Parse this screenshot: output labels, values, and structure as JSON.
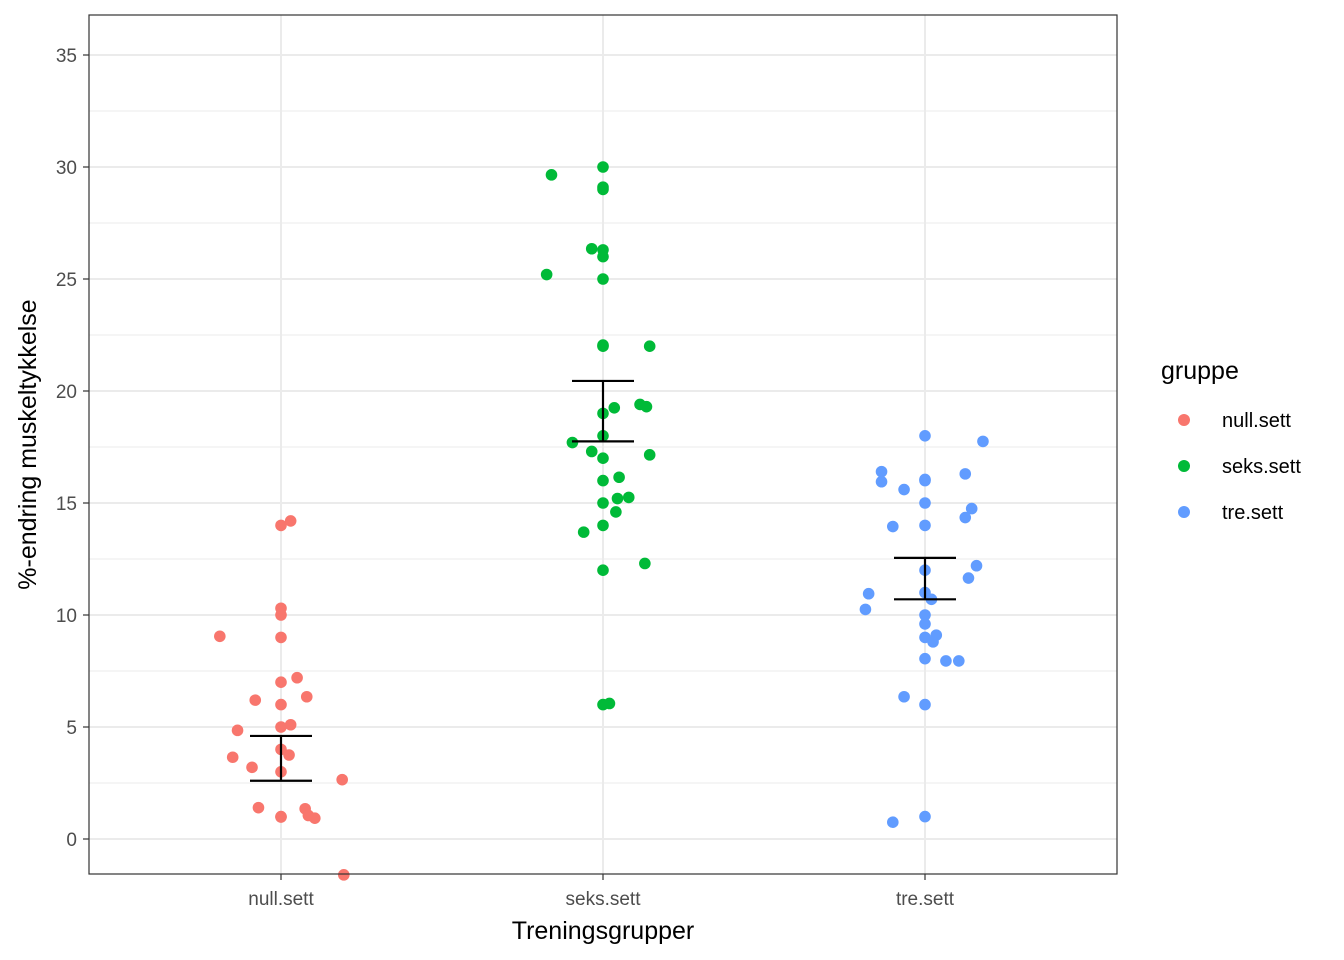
{
  "chart_data": {
    "type": "scatter",
    "subtype": "jittered strip plot with mean and standard-error bars",
    "xlabel": "Treningsgrupper",
    "ylabel": "%-endring muskeltykkelse",
    "categories": [
      "null.sett",
      "seks.sett",
      "tre.sett"
    ],
    "ylim": [
      -1.6,
      36.8
    ],
    "yticks": [
      0,
      5,
      10,
      15,
      20,
      25,
      30,
      35
    ],
    "grid": true,
    "legend": {
      "title": "gruppe",
      "position": "right",
      "entries": [
        {
          "label": "null.sett",
          "color": "#F8766D"
        },
        {
          "label": "seks.sett",
          "color": "#00BA38"
        },
        {
          "label": "tre.sett",
          "color": "#619CFF"
        }
      ]
    },
    "series": [
      {
        "name": "null.sett",
        "color": "#F8766D",
        "points": [
          {
            "dx": 0.0,
            "y": 14.0
          },
          {
            "dx": 0.03,
            "y": 14.2
          },
          {
            "dx": 0.0,
            "y": 10.3
          },
          {
            "dx": 0.0,
            "y": 10.0
          },
          {
            "dx": -0.19,
            "y": 9.05
          },
          {
            "dx": 0.0,
            "y": 9.0
          },
          {
            "dx": 0.05,
            "y": 7.2
          },
          {
            "dx": 0.0,
            "y": 7.0
          },
          {
            "dx": 0.08,
            "y": 6.35
          },
          {
            "dx": -0.08,
            "y": 6.2
          },
          {
            "dx": 0.0,
            "y": 6.0
          },
          {
            "dx": 0.03,
            "y": 5.1
          },
          {
            "dx": 0.0,
            "y": 5.0
          },
          {
            "dx": -0.135,
            "y": 4.85
          },
          {
            "dx": 0.0,
            "y": 4.0
          },
          {
            "dx": 0.025,
            "y": 3.75
          },
          {
            "dx": -0.15,
            "y": 3.65
          },
          {
            "dx": -0.09,
            "y": 3.2
          },
          {
            "dx": 0.0,
            "y": 3.0
          },
          {
            "dx": 0.19,
            "y": 2.65
          },
          {
            "dx": -0.07,
            "y": 1.4
          },
          {
            "dx": 0.075,
            "y": 1.35
          },
          {
            "dx": 0.085,
            "y": 1.05
          },
          {
            "dx": 0.0,
            "y": 1.0
          },
          {
            "dx": 0.0,
            "y": 0.98
          },
          {
            "dx": 0.105,
            "y": 0.93
          },
          {
            "dx": 0.195,
            "y": -1.6
          }
        ],
        "mean": 3.6,
        "error_bar": [
          2.6,
          4.6
        ]
      },
      {
        "name": "seks.sett",
        "color": "#00BA38",
        "points": [
          {
            "dx": 0.0,
            "y": 30.0
          },
          {
            "dx": -0.16,
            "y": 29.65
          },
          {
            "dx": 0.0,
            "y": 29.1
          },
          {
            "dx": 0.0,
            "y": 29.0
          },
          {
            "dx": -0.035,
            "y": 26.35
          },
          {
            "dx": 0.0,
            "y": 26.3
          },
          {
            "dx": 0.0,
            "y": 26.0
          },
          {
            "dx": -0.175,
            "y": 25.2
          },
          {
            "dx": 0.0,
            "y": 25.0
          },
          {
            "dx": 0.0,
            "y": 22.05
          },
          {
            "dx": 0.0,
            "y": 22.0
          },
          {
            "dx": 0.145,
            "y": 22.0
          },
          {
            "dx": 0.115,
            "y": 19.4
          },
          {
            "dx": 0.135,
            "y": 19.3
          },
          {
            "dx": 0.035,
            "y": 19.25
          },
          {
            "dx": 0.0,
            "y": 19.0
          },
          {
            "dx": 0.0,
            "y": 18.0
          },
          {
            "dx": -0.095,
            "y": 17.7
          },
          {
            "dx": -0.035,
            "y": 17.3
          },
          {
            "dx": 0.145,
            "y": 17.15
          },
          {
            "dx": 0.0,
            "y": 17.0
          },
          {
            "dx": 0.05,
            "y": 16.15
          },
          {
            "dx": 0.0,
            "y": 16.0
          },
          {
            "dx": 0.08,
            "y": 15.25
          },
          {
            "dx": 0.045,
            "y": 15.2
          },
          {
            "dx": 0.0,
            "y": 15.0
          },
          {
            "dx": 0.04,
            "y": 14.6
          },
          {
            "dx": 0.0,
            "y": 14.0
          },
          {
            "dx": -0.06,
            "y": 13.7
          },
          {
            "dx": 0.13,
            "y": 12.3
          },
          {
            "dx": 0.0,
            "y": 12.0
          },
          {
            "dx": 0.02,
            "y": 6.05
          },
          {
            "dx": 0.0,
            "y": 6.0
          }
        ],
        "mean": 19.1,
        "error_bar": [
          17.75,
          20.45
        ]
      },
      {
        "name": "tre.sett",
        "color": "#619CFF",
        "points": [
          {
            "dx": 0.0,
            "y": 18.0
          },
          {
            "dx": 0.18,
            "y": 17.75
          },
          {
            "dx": -0.135,
            "y": 16.4
          },
          {
            "dx": 0.125,
            "y": 16.3
          },
          {
            "dx": 0.0,
            "y": 16.05
          },
          {
            "dx": 0.0,
            "y": 16.0
          },
          {
            "dx": -0.135,
            "y": 15.95
          },
          {
            "dx": -0.065,
            "y": 15.6
          },
          {
            "dx": 0.0,
            "y": 15.0
          },
          {
            "dx": 0.145,
            "y": 14.75
          },
          {
            "dx": 0.125,
            "y": 14.35
          },
          {
            "dx": 0.0,
            "y": 14.0
          },
          {
            "dx": -0.1,
            "y": 13.95
          },
          {
            "dx": 0.16,
            "y": 12.2
          },
          {
            "dx": 0.0,
            "y": 12.0
          },
          {
            "dx": 0.135,
            "y": 11.65
          },
          {
            "dx": 0.0,
            "y": 11.0
          },
          {
            "dx": -0.175,
            "y": 10.95
          },
          {
            "dx": 0.02,
            "y": 10.7
          },
          {
            "dx": -0.185,
            "y": 10.25
          },
          {
            "dx": 0.0,
            "y": 10.0
          },
          {
            "dx": 0.0,
            "y": 9.6
          },
          {
            "dx": 0.035,
            "y": 9.1
          },
          {
            "dx": 0.0,
            "y": 9.0
          },
          {
            "dx": 0.025,
            "y": 8.8
          },
          {
            "dx": 0.0,
            "y": 8.05
          },
          {
            "dx": 0.065,
            "y": 7.95
          },
          {
            "dx": 0.105,
            "y": 7.95
          },
          {
            "dx": -0.065,
            "y": 6.35
          },
          {
            "dx": 0.0,
            "y": 6.0
          },
          {
            "dx": 0.0,
            "y": 1.0
          },
          {
            "dx": -0.1,
            "y": 0.75
          }
        ],
        "mean": 11.6,
        "error_bar": [
          10.7,
          12.55
        ]
      }
    ]
  }
}
